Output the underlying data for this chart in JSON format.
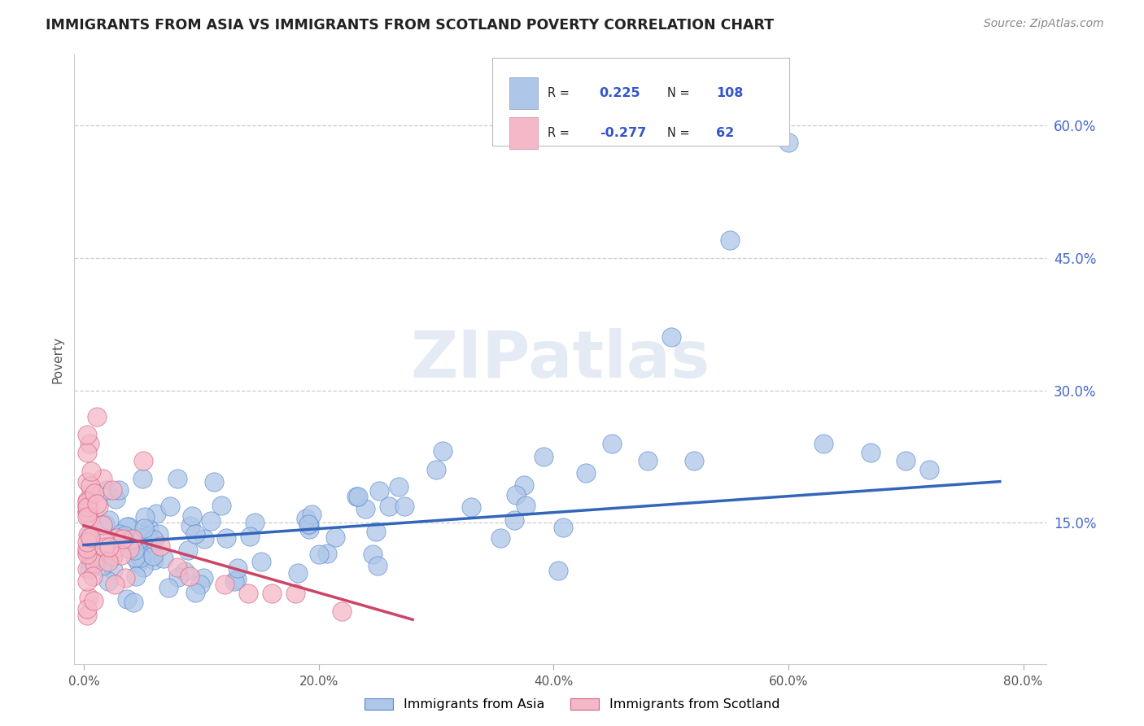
{
  "title": "IMMIGRANTS FROM ASIA VS IMMIGRANTS FROM SCOTLAND POVERTY CORRELATION CHART",
  "source": "Source: ZipAtlas.com",
  "ylabel": "Poverty",
  "xlim": [
    0.0,
    0.82
  ],
  "ylim": [
    0.0,
    0.68
  ],
  "xtick_vals": [
    0.0,
    0.2,
    0.4,
    0.6,
    0.8
  ],
  "ytick_vals": [
    0.15,
    0.3,
    0.45,
    0.6
  ],
  "legend_asia_r": "0.225",
  "legend_asia_n": "108",
  "legend_scot_r": "-0.277",
  "legend_scot_n": "62",
  "asia_fill": "#aec6e8",
  "asia_edge": "#5588cc",
  "scot_fill": "#f5b8c8",
  "scot_edge": "#d06080",
  "asia_line_color": "#3366bb",
  "scot_line_color": "#cc4466",
  "watermark": "ZIPatlas",
  "grid_color": "#cccccc",
  "tick_label_color": "#4466cc",
  "ylabel_color": "#555555"
}
